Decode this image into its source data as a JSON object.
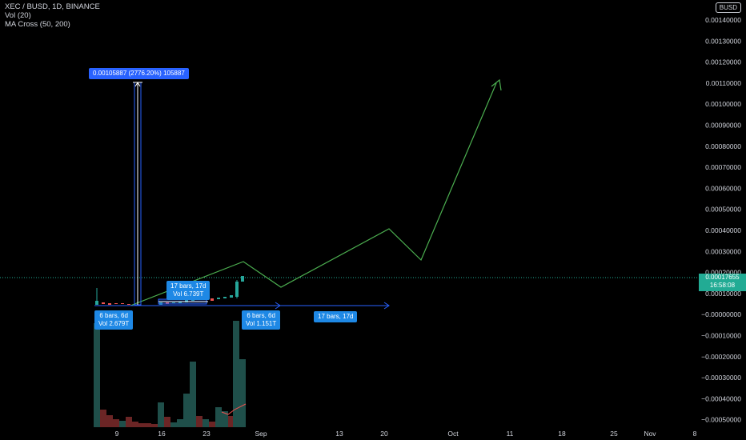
{
  "legend": {
    "symbol": "XEC / BUSD, 1D, BINANCE",
    "vol": "Vol (20)",
    "ma": "MA Cross (50, 200)"
  },
  "currency_button": "BUSD",
  "price_axis": {
    "labels": [
      "0.00140000",
      "0.00130000",
      "0.00120000",
      "0.00110000",
      "0.00100000",
      "0.00090000",
      "0.00080000",
      "0.00070000",
      "0.00060000",
      "0.00050000",
      "0.00040000",
      "0.00030000",
      "0.00020000",
      "0.00010000",
      "−0.00000000",
      "−0.00010000",
      "−0.00020000",
      "−0.00030000",
      "−0.00040000",
      "−0.00050000"
    ]
  },
  "time_axis": {
    "labels": [
      "9",
      "16",
      "23",
      "Sep",
      "13",
      "20",
      "Oct",
      "11",
      "18",
      "25",
      "Nov",
      "8"
    ]
  },
  "last_price": {
    "value": "0.00017655",
    "countdown": "16:58:08"
  },
  "measure_badges": {
    "price_range": "0.00105887 (2776.20%) 105887",
    "range_a_bars": "17 bars, 17d",
    "range_a_vol": "Vol 6.739T",
    "range_b_bars": "6 bars, 6d",
    "range_b_vol": "Vol 2.679T",
    "range_c_bars": "6 bars, 6d",
    "range_c_vol": "Vol 1.151T",
    "range_d_bars": "17 bars, 17d"
  },
  "colors": {
    "up": "#26a69a",
    "down": "#ef5350",
    "vol_up": "#1f4f4a",
    "vol_down": "#6b2525",
    "projection": "#4caf50",
    "measure": "#2962ff",
    "price_line": "#22ab94"
  }
}
